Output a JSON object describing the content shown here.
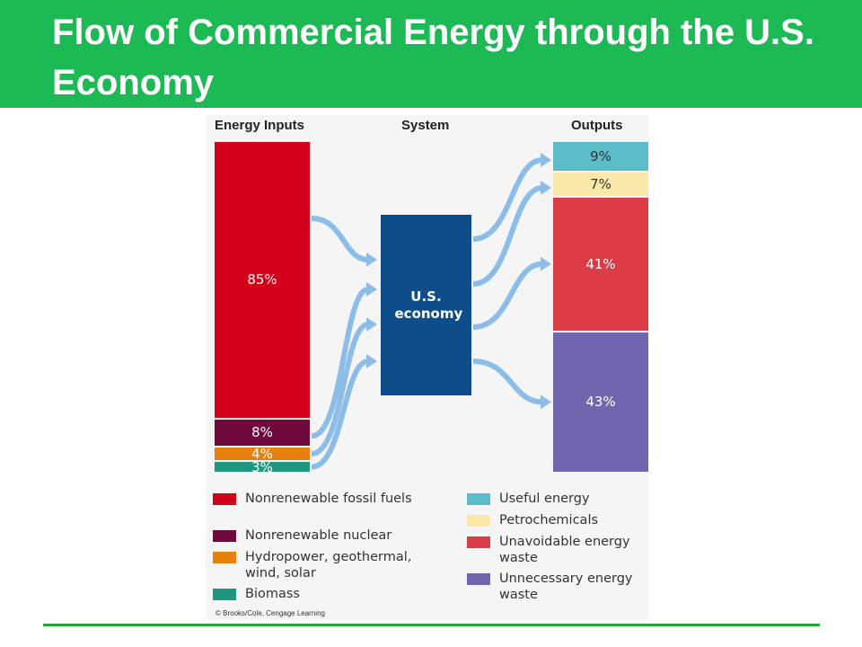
{
  "slide": {
    "title": "Flow of Commercial Energy through the U.S. Economy",
    "colors": {
      "title_bar": "#1db954",
      "bottom_rule": "#2aa33a"
    }
  },
  "diagram": {
    "headers": {
      "inputs": "Energy Inputs",
      "system": "System",
      "outputs": "Outputs"
    },
    "system_box": {
      "label": "U.S. economy",
      "color": "#0e4d8a"
    },
    "flow_color": "#8bbde8",
    "inputs": [
      {
        "name": "Nonrenewable fossil fuels",
        "label": "85%",
        "value": 85,
        "color": "#d3001c",
        "text_color": "#ffffff"
      },
      {
        "name": "Nonrenewable nuclear",
        "label": "8%",
        "value": 8,
        "color": "#6e0a3c",
        "text_color": "#ffffff"
      },
      {
        "name": "Hydropower, geothermal, wind, solar",
        "label": "4%",
        "value": 4,
        "color": "#e8800c",
        "text_color": "#ffffff"
      },
      {
        "name": "Biomass",
        "label": "3%",
        "value": 3,
        "color": "#1e9680",
        "text_color": "#ffffff"
      }
    ],
    "outputs": [
      {
        "name": "Useful energy",
        "label": "9%",
        "value": 9,
        "color": "#5bbdc8",
        "text_color": "#333333"
      },
      {
        "name": "Petrochemicals",
        "label": "7%",
        "value": 7,
        "color": "#fbe9a9",
        "text_color": "#333333"
      },
      {
        "name": "Unavoidable energy waste",
        "label": "41%",
        "value": 41,
        "color": "#dc3c46",
        "text_color": "#ffffff"
      },
      {
        "name": "Unnecessary energy waste",
        "label": "43%",
        "value": 43,
        "color": "#7066ae",
        "text_color": "#ffffff"
      }
    ],
    "legend": {
      "left": [
        {
          "label": "Nonrenewable fossil fuels",
          "color": "#d3001c"
        },
        {
          "label": "Nonrenewable nuclear",
          "color": "#6e0a3c"
        },
        {
          "label": "Hydropower, geothermal, wind, solar",
          "color": "#e8800c"
        },
        {
          "label": "Biomass",
          "color": "#1e9680"
        }
      ],
      "right": [
        {
          "label": "Useful energy",
          "color": "#5bbdc8"
        },
        {
          "label": "Petrochemicals",
          "color": "#fbe9a9"
        },
        {
          "label": "Unavoidable energy waste",
          "color": "#dc3c46"
        },
        {
          "label": "Unnecessary energy waste",
          "color": "#7066ae"
        }
      ]
    },
    "credit": "© Brooks/Cole, Cengage Learning"
  }
}
